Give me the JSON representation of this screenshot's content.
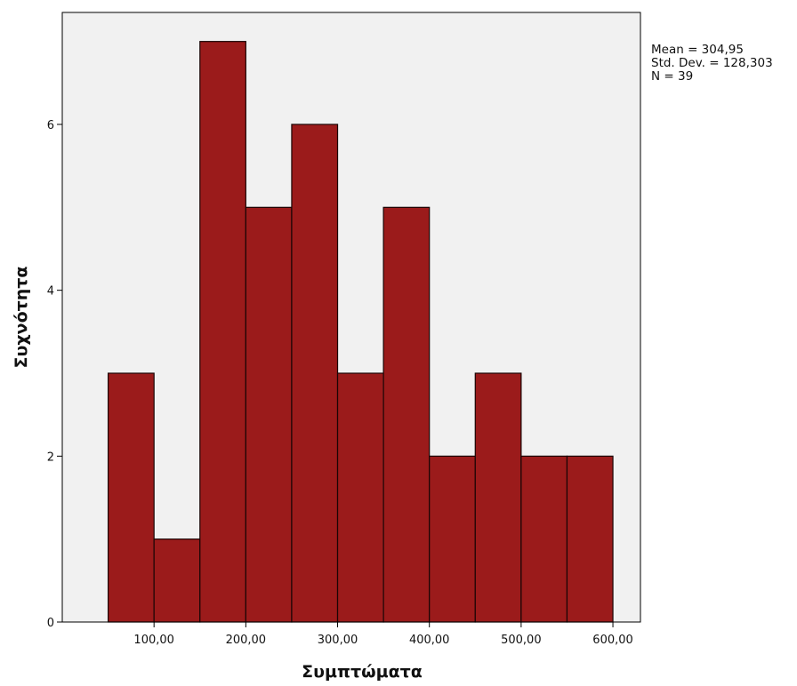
{
  "chart_data": {
    "type": "bar",
    "subtype": "histogram",
    "xlabel": "Συμπτώματα",
    "ylabel": "Συχνότητα",
    "bins": [
      {
        "from": 50,
        "to": 100,
        "count": 3
      },
      {
        "from": 100,
        "to": 150,
        "count": 1
      },
      {
        "from": 150,
        "to": 200,
        "count": 7
      },
      {
        "from": 200,
        "to": 250,
        "count": 5
      },
      {
        "from": 250,
        "to": 300,
        "count": 6
      },
      {
        "from": 300,
        "to": 350,
        "count": 3
      },
      {
        "from": 350,
        "to": 400,
        "count": 5
      },
      {
        "from": 400,
        "to": 450,
        "count": 2
      },
      {
        "from": 450,
        "to": 500,
        "count": 3
      },
      {
        "from": 500,
        "to": 550,
        "count": 2
      },
      {
        "from": 550,
        "to": 600,
        "count": 2
      }
    ],
    "xlim": [
      0,
      630
    ],
    "ylim": [
      0,
      7.35
    ],
    "x_ticks": [
      100,
      200,
      300,
      400,
      500,
      600
    ],
    "x_tick_labels": [
      "100,00",
      "200,00",
      "300,00",
      "400,00",
      "500,00",
      "600,00"
    ],
    "y_ticks": [
      0,
      2,
      4,
      6
    ],
    "y_tick_labels": [
      "0",
      "2",
      "4",
      "6"
    ],
    "stats": {
      "mean": "Mean = 304,95",
      "std_dev": "Std. Dev. = 128,303",
      "n": "N = 39"
    },
    "legend_position": "top-right",
    "grid": false,
    "colors": {
      "bar_fill": "#9b1b1b",
      "bar_stroke": "#1a0505",
      "plot_background": "#f1f1f1",
      "axis": "#000000"
    }
  }
}
